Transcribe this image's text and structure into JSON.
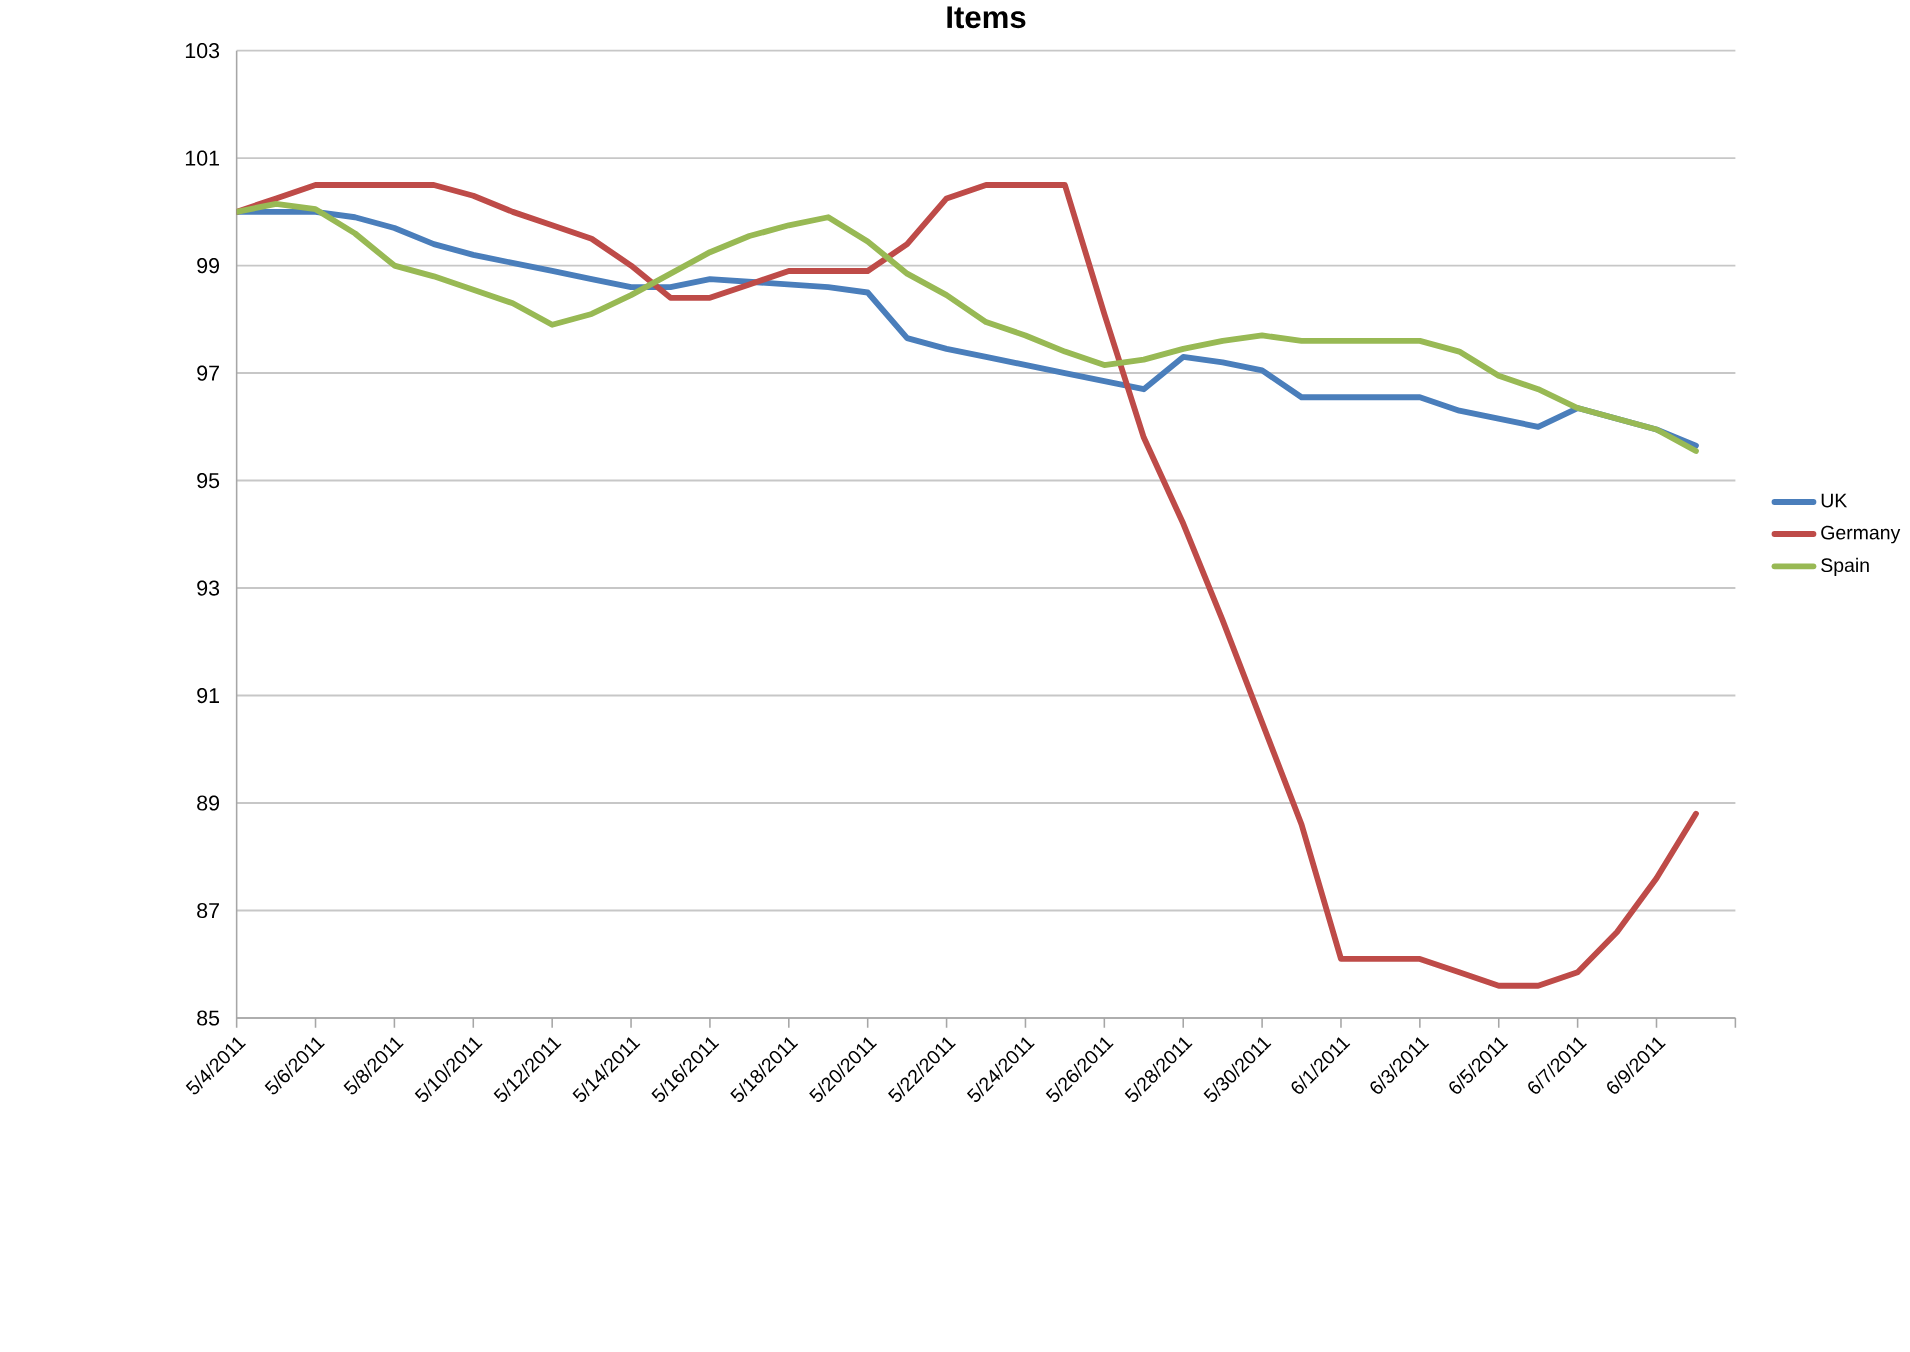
{
  "chart_data": {
    "type": "line",
    "title": "Items",
    "x": [
      "2011-05-04",
      "2011-05-05",
      "2011-05-06",
      "2011-05-07",
      "2011-05-08",
      "2011-05-09",
      "2011-05-10",
      "2011-05-11",
      "2011-05-12",
      "2011-05-13",
      "2011-05-14",
      "2011-05-15",
      "2011-05-16",
      "2011-05-17",
      "2011-05-18",
      "2011-05-19",
      "2011-05-20",
      "2011-05-21",
      "2011-05-22",
      "2011-05-23",
      "2011-05-24",
      "2011-05-25",
      "2011-05-26",
      "2011-05-27",
      "2011-05-28",
      "2011-05-29",
      "2011-05-30",
      "2011-05-31",
      "2011-06-01",
      "2011-06-02",
      "2011-06-03",
      "2011-06-04",
      "2011-06-05",
      "2011-06-06",
      "2011-06-07",
      "2011-06-08",
      "2011-06-09",
      "2011-06-10"
    ],
    "series": [
      {
        "name": "UK",
        "color": "#4a7ebb",
        "values": [
          100,
          100,
          100,
          99.9,
          99.7,
          99.4,
          99.2,
          99.05,
          98.9,
          98.75,
          98.6,
          98.6,
          98.75,
          98.7,
          98.65,
          98.6,
          98.5,
          97.65,
          97.45,
          97.3,
          97.15,
          97.0,
          96.85,
          96.7,
          97.3,
          97.2,
          97.05,
          96.55,
          96.55,
          96.55,
          96.55,
          96.3,
          96.15,
          96.0,
          96.35,
          96.15,
          95.95,
          95.65
        ]
      },
      {
        "name": "Germany",
        "color": "#be4b48",
        "values": [
          100,
          100.25,
          100.5,
          100.5,
          100.5,
          100.5,
          100.3,
          100.0,
          99.75,
          99.5,
          99.0,
          98.4,
          98.4,
          98.65,
          98.9,
          98.9,
          98.9,
          99.4,
          100.25,
          100.5,
          100.5,
          100.5,
          98.1,
          95.8,
          94.2,
          92.4,
          90.5,
          88.6,
          86.1,
          86.1,
          86.1,
          85.85,
          85.6,
          85.6,
          85.85,
          86.6,
          87.6,
          88.8
        ]
      },
      {
        "name": "Spain",
        "color": "#98b954",
        "values": [
          100,
          100.15,
          100.05,
          99.6,
          99.0,
          98.8,
          98.55,
          98.3,
          97.9,
          98.1,
          98.45,
          98.85,
          99.25,
          99.55,
          99.75,
          99.9,
          99.45,
          98.85,
          98.45,
          97.95,
          97.7,
          97.4,
          97.15,
          97.25,
          97.45,
          97.6,
          97.7,
          97.6,
          97.6,
          97.6,
          97.6,
          97.4,
          96.95,
          96.7,
          96.35,
          96.15,
          95.95,
          95.55
        ]
      }
    ],
    "xlim": [
      "2011-05-04",
      "2011-06-11"
    ],
    "xticks": [
      {
        "value": "2011-05-04",
        "label": "5/4/2011"
      },
      {
        "value": "2011-05-06",
        "label": "5/6/2011"
      },
      {
        "value": "2011-05-08",
        "label": "5/8/2011"
      },
      {
        "value": "2011-05-10",
        "label": "5/10/2011"
      },
      {
        "value": "2011-05-12",
        "label": "5/12/2011"
      },
      {
        "value": "2011-05-14",
        "label": "5/14/2011"
      },
      {
        "value": "2011-05-16",
        "label": "5/16/2011"
      },
      {
        "value": "2011-05-18",
        "label": "5/18/2011"
      },
      {
        "value": "2011-05-20",
        "label": "5/20/2011"
      },
      {
        "value": "2011-05-22",
        "label": "5/22/2011"
      },
      {
        "value": "2011-05-24",
        "label": "5/24/2011"
      },
      {
        "value": "2011-05-26",
        "label": "5/26/2011"
      },
      {
        "value": "2011-05-28",
        "label": "5/28/2011"
      },
      {
        "value": "2011-05-30",
        "label": "5/30/2011"
      },
      {
        "value": "2011-06-01",
        "label": "6/1/2011"
      },
      {
        "value": "2011-06-03",
        "label": "6/3/2011"
      },
      {
        "value": "2011-06-05",
        "label": "6/5/2011"
      },
      {
        "value": "2011-06-07",
        "label": "6/7/2011"
      },
      {
        "value": "2011-06-09",
        "label": "6/9/2011"
      },
      {
        "value": "2011-06-11",
        "label": null
      }
    ],
    "ylim": [
      85,
      103
    ],
    "yticks": [
      85,
      87,
      89,
      91,
      93,
      95,
      97,
      99,
      101,
      103
    ],
    "grid": "y",
    "legend": "right",
    "marker": "none",
    "line_style": "solid"
  }
}
